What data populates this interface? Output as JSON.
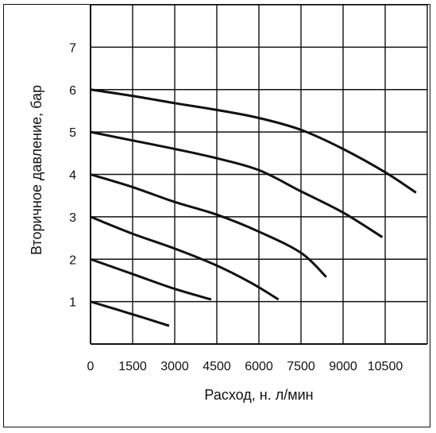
{
  "chart_data": {
    "type": "line",
    "title": "",
    "xlabel": "Расход, н. л/мин",
    "ylabel": "Вторичное давление, бар",
    "xlim": [
      0,
      12000
    ],
    "ylim": [
      0,
      8
    ],
    "grid": true,
    "legend": "none",
    "colors": {
      "line": "#111111",
      "grid": "#111111",
      "background": "#ffffff"
    },
    "x_ticks": [
      "0",
      "1500",
      "3000",
      "4500",
      "6000",
      "7500",
      "9000",
      "10500"
    ],
    "y_ticks": [
      "1",
      "2",
      "3",
      "4",
      "5",
      "6",
      "7"
    ],
    "series": [
      {
        "x": [
          0,
          1500,
          2800
        ],
        "y": [
          1.0,
          0.7,
          0.43
        ]
      },
      {
        "x": [
          0,
          1500,
          3000,
          4300
        ],
        "y": [
          2.0,
          1.65,
          1.3,
          1.05
        ]
      },
      {
        "x": [
          0,
          1500,
          3000,
          4500,
          5700,
          6700
        ],
        "y": [
          3.0,
          2.6,
          2.25,
          1.85,
          1.45,
          1.05
        ]
      },
      {
        "x": [
          0,
          1500,
          3000,
          4500,
          6000,
          7500,
          8400
        ],
        "y": [
          4.0,
          3.7,
          3.35,
          3.05,
          2.65,
          2.15,
          1.58
        ]
      },
      {
        "x": [
          0,
          1500,
          3000,
          4500,
          6000,
          7500,
          9000,
          10400
        ],
        "y": [
          5.0,
          4.8,
          4.6,
          4.38,
          4.1,
          3.6,
          3.1,
          2.52
        ]
      },
      {
        "x": [
          0,
          1500,
          3000,
          4500,
          6000,
          7500,
          9000,
          10500,
          11600
        ],
        "y": [
          6.0,
          5.85,
          5.68,
          5.52,
          5.33,
          5.05,
          4.6,
          4.05,
          3.57
        ]
      }
    ]
  }
}
